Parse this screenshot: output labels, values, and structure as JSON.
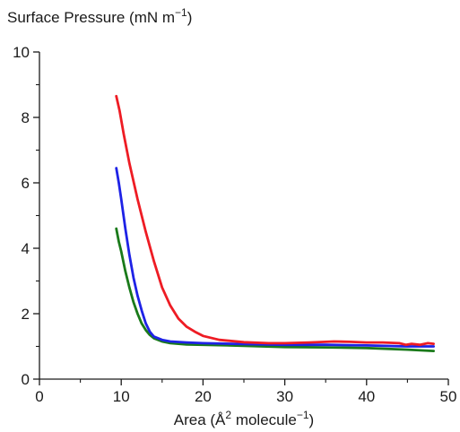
{
  "chart_data": {
    "type": "line",
    "title": "",
    "ylabel_prefix": "Surface Pressure (mN m",
    "ylabel_sup": "−1",
    "ylabel_suffix": ")",
    "xlabel_prefix": "Area (Å",
    "xlabel_sup1": "2",
    "xlabel_mid": " molecule",
    "xlabel_sup2": "−1",
    "xlabel_suffix": ")",
    "xlim": [
      0,
      50
    ],
    "ylim": [
      0,
      10
    ],
    "x_major_ticks": [
      0,
      10,
      20,
      30,
      40,
      50
    ],
    "x_major_tick_labels": [
      "0",
      "10",
      "20",
      "30",
      "40",
      "50"
    ],
    "x_minor_ticks": [
      5,
      15,
      25,
      35,
      45
    ],
    "y_major_ticks": [
      0,
      2,
      4,
      6,
      8,
      10
    ],
    "y_major_tick_labels": [
      "0",
      "2",
      "4",
      "6",
      "8",
      "10"
    ],
    "y_minor_ticks": [
      1,
      3,
      5,
      7,
      9
    ],
    "grid": false,
    "legend": "none",
    "series": [
      {
        "color": "#ee1c24",
        "points": [
          [
            9.4,
            8.65
          ],
          [
            9.8,
            8.2
          ],
          [
            10.3,
            7.5
          ],
          [
            11,
            6.6
          ],
          [
            12,
            5.5
          ],
          [
            13,
            4.5
          ],
          [
            14,
            3.6
          ],
          [
            15,
            2.8
          ],
          [
            16,
            2.25
          ],
          [
            17,
            1.85
          ],
          [
            18,
            1.6
          ],
          [
            19,
            1.45
          ],
          [
            20,
            1.32
          ],
          [
            22,
            1.2
          ],
          [
            25,
            1.13
          ],
          [
            28,
            1.1
          ],
          [
            30,
            1.1
          ],
          [
            33,
            1.12
          ],
          [
            36,
            1.15
          ],
          [
            38,
            1.14
          ],
          [
            40,
            1.12
          ],
          [
            42,
            1.12
          ],
          [
            44,
            1.1
          ],
          [
            44.8,
            1.05
          ],
          [
            45.5,
            1.08
          ],
          [
            46.5,
            1.05
          ],
          [
            47.5,
            1.1
          ],
          [
            48.2,
            1.08
          ]
        ]
      },
      {
        "color": "#1e22e6",
        "points": [
          [
            9.4,
            6.45
          ],
          [
            9.7,
            6.0
          ],
          [
            10,
            5.5
          ],
          [
            10.5,
            4.6
          ],
          [
            11,
            3.8
          ],
          [
            11.5,
            3.1
          ],
          [
            12,
            2.55
          ],
          [
            12.5,
            2.1
          ],
          [
            13,
            1.7
          ],
          [
            13.5,
            1.45
          ],
          [
            14,
            1.3
          ],
          [
            15,
            1.2
          ],
          [
            16,
            1.15
          ],
          [
            18,
            1.12
          ],
          [
            20,
            1.1
          ],
          [
            25,
            1.07
          ],
          [
            30,
            1.05
          ],
          [
            35,
            1.05
          ],
          [
            40,
            1.03
          ],
          [
            45,
            1.0
          ],
          [
            48.2,
            1.0
          ]
        ]
      },
      {
        "color": "#1a7a1a",
        "points": [
          [
            9.4,
            4.6
          ],
          [
            9.7,
            4.2
          ],
          [
            10,
            3.9
          ],
          [
            10.5,
            3.3
          ],
          [
            11,
            2.8
          ],
          [
            11.5,
            2.35
          ],
          [
            12,
            2.0
          ],
          [
            12.5,
            1.7
          ],
          [
            13,
            1.5
          ],
          [
            13.5,
            1.35
          ],
          [
            14,
            1.25
          ],
          [
            15,
            1.15
          ],
          [
            16,
            1.1
          ],
          [
            18,
            1.06
          ],
          [
            20,
            1.05
          ],
          [
            25,
            1.02
          ],
          [
            30,
            0.98
          ],
          [
            35,
            0.97
          ],
          [
            40,
            0.95
          ],
          [
            45,
            0.9
          ],
          [
            48.2,
            0.86
          ]
        ]
      }
    ]
  }
}
